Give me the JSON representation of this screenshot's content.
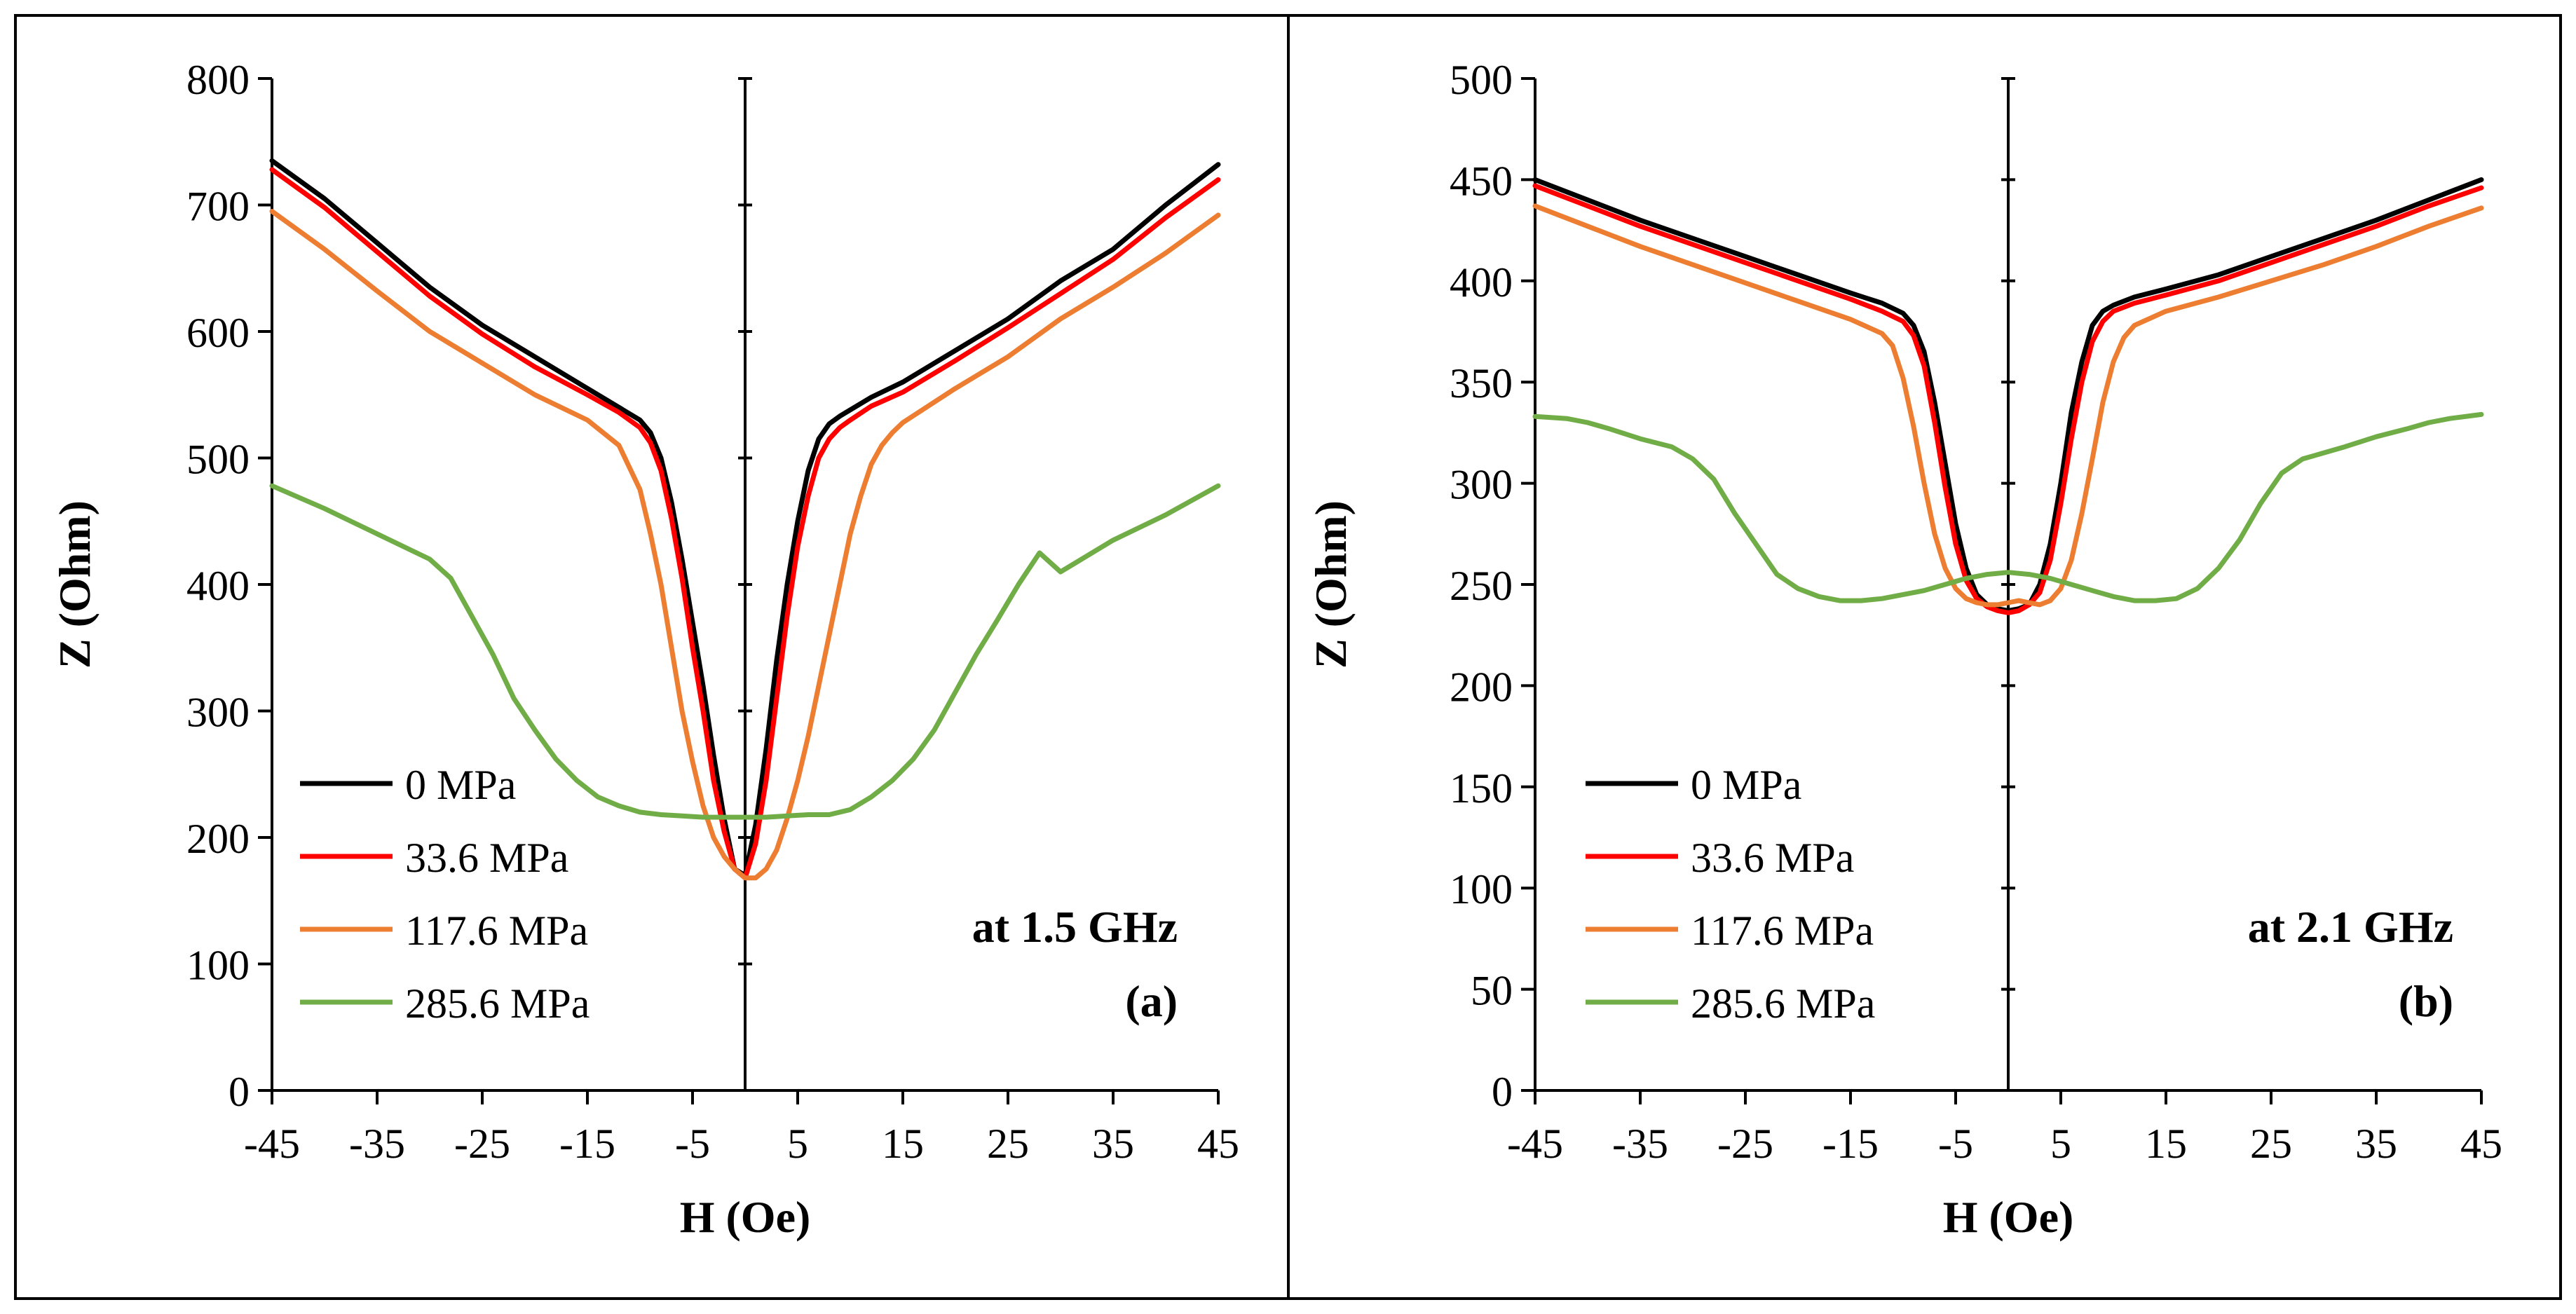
{
  "colors": {
    "s0": "#000000",
    "s1": "#ff0000",
    "s2": "#ed7d31",
    "s3": "#70ad47",
    "axis": "#000000",
    "frame": "#000000"
  },
  "chart_data": [
    {
      "id": "a",
      "type": "line",
      "xlabel": "H (Oe)",
      "ylabel": "Z (Ohm)",
      "xlim": [
        -45,
        45
      ],
      "ylim": [
        0,
        800
      ],
      "xticks": [
        -45,
        -35,
        -25,
        -15,
        -5,
        5,
        15,
        25,
        35,
        45
      ],
      "yticks": [
        0,
        100,
        200,
        300,
        400,
        500,
        600,
        700,
        800
      ],
      "annotation": "at 1.5 GHz",
      "panel_label": "(a)",
      "legend_position": "bottom-left",
      "series": [
        {
          "name": "0 MPa",
          "color_key": "s0",
          "x": [
            -45,
            -40,
            -35,
            -30,
            -25,
            -20,
            -15,
            -12,
            -10,
            -9,
            -8,
            -7,
            -6,
            -5,
            -4,
            -3,
            -2,
            -1,
            0,
            1,
            2,
            3,
            4,
            5,
            6,
            7,
            8,
            9,
            10,
            12,
            15,
            20,
            25,
            30,
            35,
            40,
            45
          ],
          "y": [
            735,
            705,
            670,
            635,
            605,
            580,
            555,
            540,
            530,
            520,
            500,
            465,
            420,
            370,
            320,
            265,
            215,
            175,
            170,
            210,
            270,
            340,
            400,
            450,
            490,
            515,
            527,
            533,
            538,
            548,
            560,
            585,
            610,
            640,
            665,
            700,
            732
          ]
        },
        {
          "name": "33.6 MPa",
          "color_key": "s1",
          "x": [
            -45,
            -40,
            -35,
            -30,
            -25,
            -20,
            -15,
            -12,
            -10,
            -9,
            -8,
            -7,
            -6,
            -5,
            -4,
            -3,
            -2,
            -1,
            0,
            1,
            2,
            3,
            4,
            5,
            6,
            7,
            8,
            9,
            10,
            12,
            15,
            20,
            25,
            30,
            35,
            40,
            45
          ],
          "y": [
            728,
            698,
            663,
            628,
            598,
            572,
            550,
            536,
            524,
            512,
            490,
            452,
            405,
            350,
            300,
            245,
            205,
            175,
            168,
            195,
            245,
            310,
            375,
            430,
            470,
            500,
            515,
            524,
            530,
            541,
            552,
            577,
            603,
            630,
            657,
            690,
            720
          ]
        },
        {
          "name": "117.6 MPa",
          "color_key": "s2",
          "x": [
            -45,
            -40,
            -35,
            -30,
            -25,
            -20,
            -15,
            -12,
            -10,
            -9,
            -8,
            -7,
            -6,
            -5,
            -4,
            -3,
            -2,
            -1,
            0,
            1,
            2,
            3,
            4,
            5,
            6,
            7,
            8,
            9,
            10,
            11,
            12,
            13,
            14,
            15,
            20,
            25,
            30,
            35,
            40,
            45
          ],
          "y": [
            695,
            665,
            632,
            600,
            575,
            550,
            530,
            510,
            475,
            440,
            400,
            350,
            300,
            260,
            225,
            200,
            185,
            175,
            168,
            168,
            175,
            190,
            215,
            245,
            280,
            320,
            360,
            400,
            440,
            470,
            495,
            510,
            520,
            528,
            555,
            580,
            610,
            635,
            662,
            692
          ]
        },
        {
          "name": "285.6 MPa",
          "color_key": "s3",
          "x": [
            -45,
            -40,
            -35,
            -30,
            -28,
            -26,
            -24,
            -22,
            -20,
            -18,
            -16,
            -14,
            -12,
            -10,
            -8,
            -6,
            -4,
            -2,
            0,
            2,
            4,
            6,
            8,
            10,
            12,
            14,
            16,
            18,
            20,
            22,
            24,
            26,
            28,
            30,
            35,
            40,
            45
          ],
          "y": [
            478,
            460,
            440,
            420,
            405,
            375,
            345,
            310,
            285,
            262,
            245,
            232,
            225,
            220,
            218,
            217,
            216,
            216,
            216,
            216,
            217,
            218,
            218,
            222,
            232,
            245,
            262,
            285,
            315,
            345,
            372,
            400,
            425,
            410,
            435,
            455,
            478
          ]
        }
      ]
    },
    {
      "id": "b",
      "type": "line",
      "xlabel": "H (Oe)",
      "ylabel": "Z (Ohm)",
      "xlim": [
        -45,
        45
      ],
      "ylim": [
        0,
        500
      ],
      "xticks": [
        -45,
        -35,
        -25,
        -15,
        -5,
        5,
        15,
        25,
        35,
        45
      ],
      "yticks": [
        0,
        50,
        100,
        150,
        200,
        250,
        300,
        350,
        400,
        450,
        500
      ],
      "annotation": "at 2.1 GHz",
      "panel_label": "(b)",
      "legend_position": "bottom-left",
      "series": [
        {
          "name": "0 MPa",
          "color_key": "s0",
          "x": [
            -45,
            -40,
            -35,
            -30,
            -25,
            -20,
            -15,
            -12,
            -10,
            -9,
            -8,
            -7,
            -6,
            -5,
            -4,
            -3,
            -2,
            -1,
            0,
            1,
            2,
            3,
            4,
            5,
            6,
            7,
            8,
            9,
            10,
            12,
            15,
            20,
            25,
            30,
            35,
            40,
            45
          ],
          "y": [
            450,
            440,
            430,
            421,
            412,
            403,
            394,
            389,
            384,
            378,
            365,
            340,
            310,
            280,
            258,
            245,
            240,
            238,
            237,
            238,
            240,
            250,
            270,
            300,
            335,
            360,
            378,
            385,
            388,
            392,
            396,
            403,
            412,
            421,
            430,
            440,
            450
          ]
        },
        {
          "name": "33.6 MPa",
          "color_key": "s1",
          "x": [
            -45,
            -40,
            -35,
            -30,
            -25,
            -20,
            -15,
            -12,
            -10,
            -9,
            -8,
            -7,
            -6,
            -5,
            -4,
            -3,
            -2,
            -1,
            0,
            1,
            2,
            3,
            4,
            5,
            6,
            7,
            8,
            9,
            10,
            12,
            15,
            20,
            25,
            30,
            35,
            40,
            45
          ],
          "y": [
            447,
            437,
            427,
            418,
            409,
            400,
            391,
            385,
            380,
            373,
            358,
            330,
            298,
            270,
            252,
            243,
            239,
            237,
            236,
            237,
            240,
            246,
            262,
            290,
            322,
            350,
            370,
            380,
            385,
            389,
            393,
            400,
            409,
            418,
            427,
            437,
            446
          ]
        },
        {
          "name": "117.6 MPa",
          "color_key": "s2",
          "x": [
            -45,
            -40,
            -35,
            -30,
            -25,
            -20,
            -15,
            -12,
            -11,
            -10,
            -9,
            -8,
            -7,
            -6,
            -5,
            -4,
            -3,
            -2,
            -1,
            0,
            1,
            2,
            3,
            4,
            5,
            6,
            7,
            8,
            9,
            10,
            11,
            12,
            15,
            20,
            25,
            30,
            35,
            40,
            45
          ],
          "y": [
            437,
            427,
            417,
            408,
            399,
            390,
            381,
            374,
            368,
            352,
            328,
            300,
            275,
            258,
            248,
            243,
            241,
            240,
            240,
            241,
            242,
            241,
            240,
            242,
            248,
            262,
            285,
            312,
            340,
            360,
            372,
            378,
            385,
            392,
            400,
            408,
            417,
            427,
            436
          ]
        },
        {
          "name": "285.6 MPa",
          "color_key": "s3",
          "x": [
            -45,
            -42,
            -40,
            -38,
            -35,
            -32,
            -30,
            -28,
            -26,
            -24,
            -22,
            -20,
            -18,
            -16,
            -14,
            -12,
            -10,
            -8,
            -6,
            -4,
            -2,
            0,
            2,
            4,
            6,
            8,
            10,
            12,
            14,
            16,
            18,
            20,
            22,
            24,
            26,
            28,
            30,
            32,
            35,
            38,
            40,
            42,
            45
          ],
          "y": [
            333,
            332,
            330,
            327,
            322,
            318,
            312,
            302,
            285,
            270,
            255,
            248,
            244,
            242,
            242,
            243,
            245,
            247,
            250,
            253,
            255,
            256,
            255,
            253,
            250,
            247,
            244,
            242,
            242,
            243,
            248,
            258,
            272,
            290,
            305,
            312,
            315,
            318,
            323,
            327,
            330,
            332,
            334
          ]
        }
      ]
    }
  ]
}
